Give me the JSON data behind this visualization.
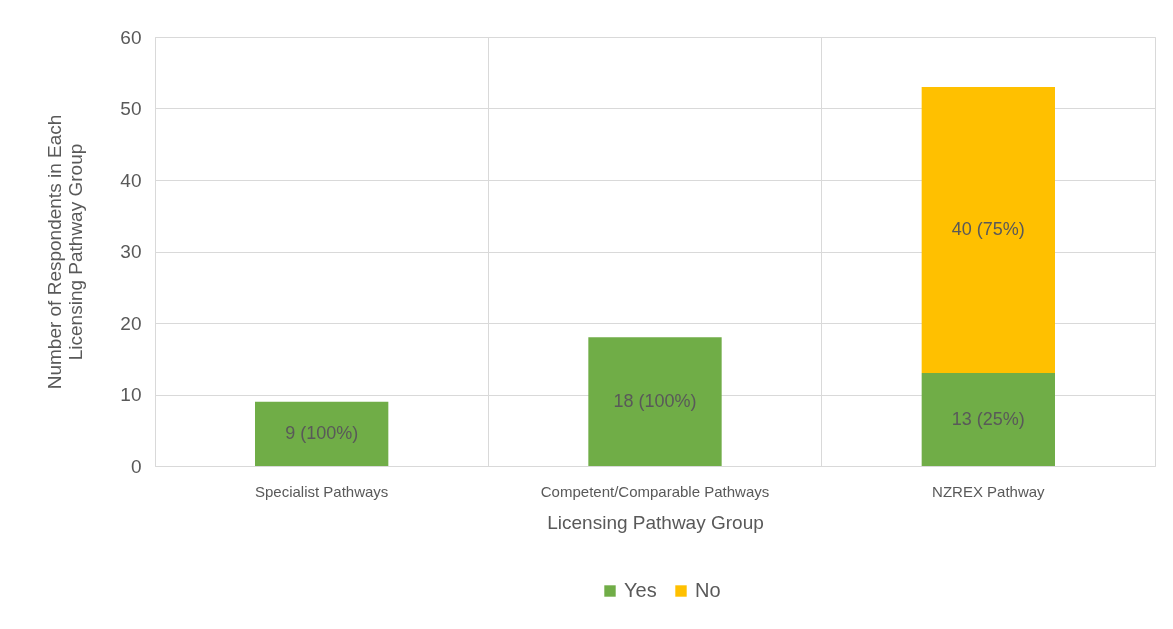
{
  "chart_data": {
    "type": "bar",
    "stacked": true,
    "categories": [
      "Specialist Pathways",
      "Competent/Comparable Pathways",
      "NZREX Pathway"
    ],
    "series": [
      {
        "name": "Yes",
        "color": "#70ad47",
        "values": [
          9,
          18,
          13
        ],
        "value_labels": [
          "9 (100%)",
          "18 (100%)",
          "13 (25%)"
        ]
      },
      {
        "name": "No",
        "color": "#ffc000",
        "values": [
          null,
          null,
          40
        ],
        "value_labels": [
          null,
          null,
          "40 (75%)"
        ]
      }
    ],
    "xlabel": "Licensing Pathway Group",
    "ylabel": "Number of Respondents in Each Licensing Pathway Group",
    "ylim": [
      0,
      60
    ],
    "yticks": [
      0,
      10,
      20,
      30,
      40,
      50,
      60
    ],
    "grid": true,
    "legend": "bottom"
  }
}
